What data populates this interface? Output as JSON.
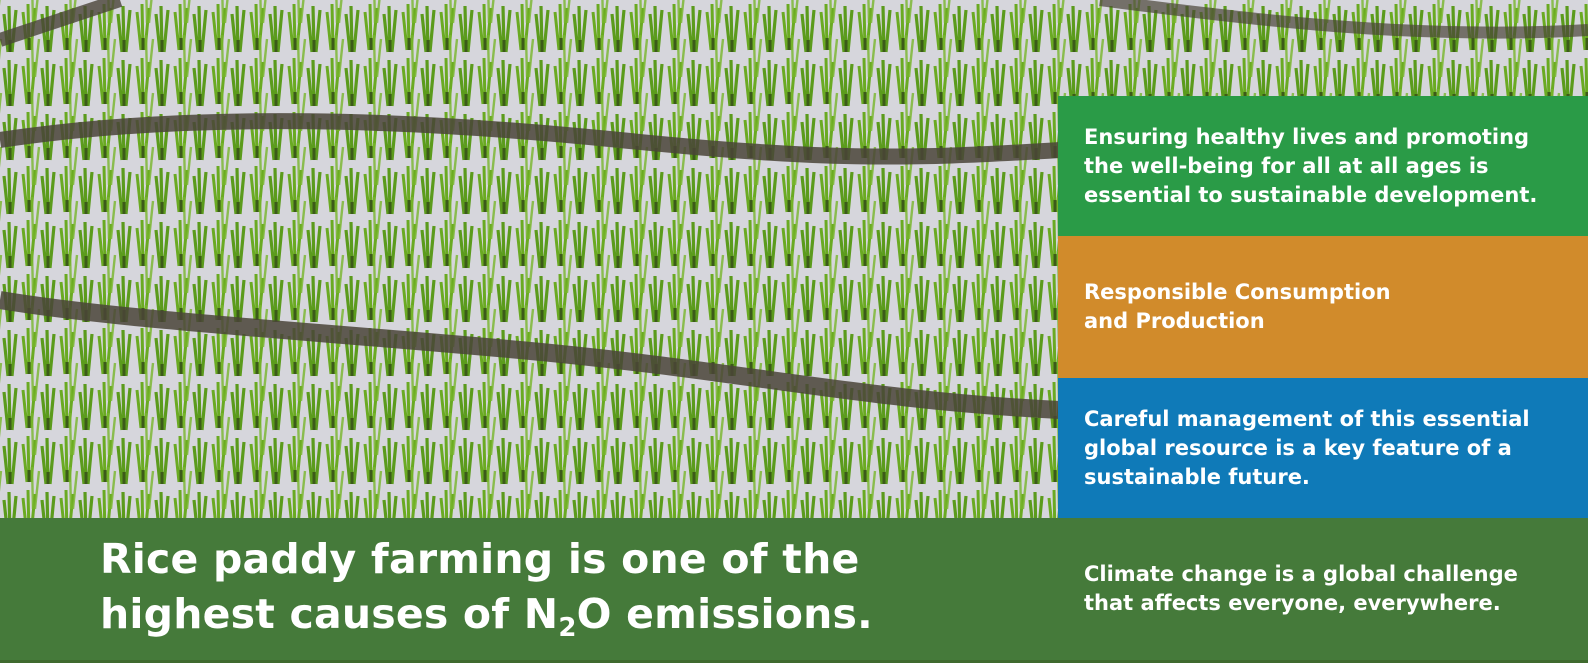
{
  "panels": {
    "health": "Ensuring healthy lives and promoting the well-being for all at all ages is essential to sustainable development.",
    "consumption": "Responsible Consumption and Production",
    "water": "Careful management of this essential global resource is a key feature of a sustainable future.",
    "climate": "Climate change is a global challenge that affects everyone, everywhere."
  },
  "headline": {
    "line1": "Rice paddy farming is one of the",
    "line2_pre": "highest causes of N",
    "subscript": "2",
    "line2_post": "O emissions."
  },
  "colors": {
    "health_green": "#2a9b47",
    "consumption_orange": "#d18b2b",
    "water_blue": "#0f7ab8",
    "bar_green": "#457a3a"
  },
  "background": {
    "subject": "rice-paddy-field-photo"
  }
}
